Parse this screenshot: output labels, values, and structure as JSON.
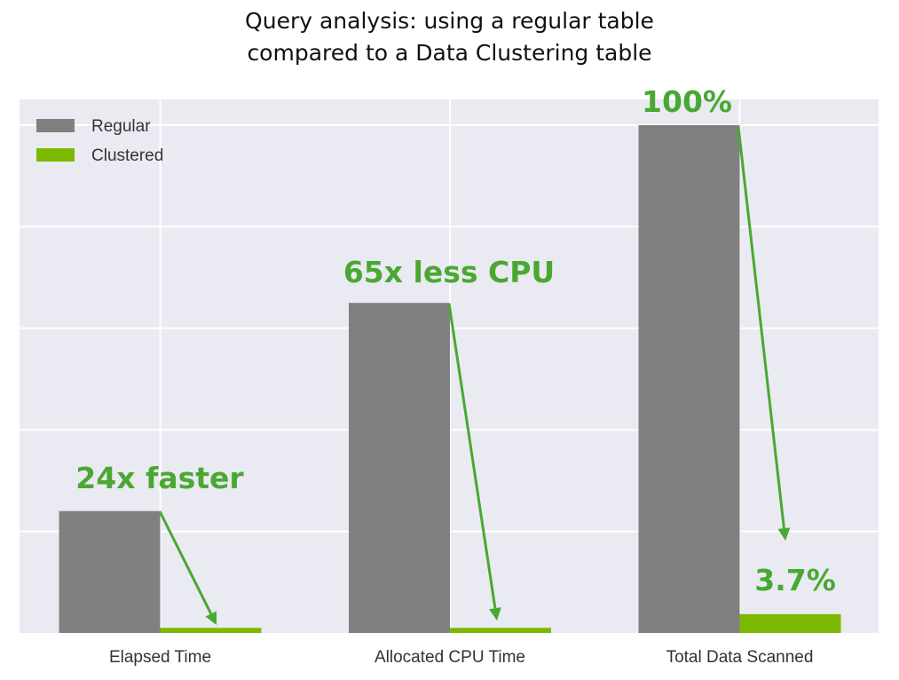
{
  "chart_data": {
    "type": "bar",
    "title": "Query analysis: using a regular table compared to a Data Clustering table",
    "title_lines": [
      "Query analysis: using a regular table",
      "compared to a Data Clustering table"
    ],
    "categories": [
      "Elapsed Time",
      "Allocated CPU Time",
      "Total Data Scanned"
    ],
    "series": [
      {
        "name": "Regular",
        "color": "#808080",
        "values": [
          24,
          65,
          100
        ]
      },
      {
        "name": "Clustered",
        "color": "#7cb800",
        "values": [
          1,
          1,
          3.7
        ]
      }
    ],
    "xlabel": "",
    "ylabel": "",
    "ylim": [
      0,
      105
    ],
    "yticks_hidden": true,
    "grid": true,
    "grid_color": "#ffffff",
    "plot_background": "#eaeaf2",
    "legend_position": "upper left",
    "annotations": [
      {
        "text": "24x faster",
        "category": "Elapsed Time"
      },
      {
        "text": "65x less CPU",
        "category": "Allocated CPU Time"
      },
      {
        "text": "100%",
        "category": "Total Data Scanned",
        "series": "Regular"
      },
      {
        "text": "3.7%",
        "category": "Total Data Scanned",
        "series": "Clustered"
      }
    ],
    "annotation_color": "#4aa832"
  }
}
